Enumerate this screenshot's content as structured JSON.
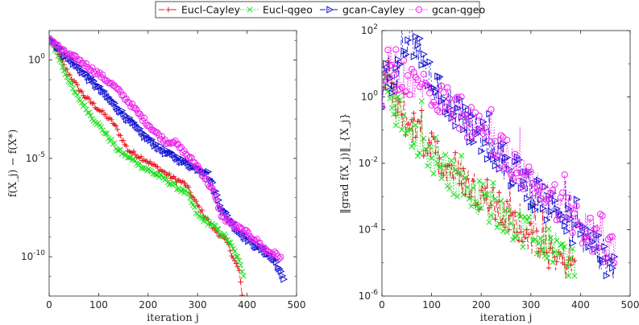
{
  "chart_data": [
    {
      "type": "line",
      "panel": "left",
      "ylabel": "f(X_j) − f(X*)",
      "xlabel": "iteration j",
      "yscale": "log",
      "xlim": [
        0,
        500
      ],
      "ylim_log10": [
        -12,
        1.5
      ],
      "xticks": [
        0,
        100,
        200,
        300,
        400,
        500
      ],
      "ytick_labels": [
        {
          "exp": 0,
          "base": "10",
          "sup": "0"
        },
        {
          "exp": -5,
          "base": "10",
          "sup": "-5"
        },
        {
          "exp": -10,
          "base": "10",
          "sup": "-10"
        }
      ],
      "series": [
        {
          "name": "Eucl-Cayley",
          "x": [
            0,
            10,
            30,
            50,
            70,
            100,
            130,
            160,
            190,
            220,
            250,
            275,
            280,
            300,
            330,
            360,
            385,
            390
          ],
          "log10y": [
            1.1,
            0.8,
            -0.3,
            -1.1,
            -1.8,
            -2.5,
            -3.2,
            -4.6,
            -5.0,
            -5.5,
            -6.0,
            -6.3,
            -6.5,
            -7.4,
            -8.5,
            -9.3,
            -10.8,
            -12.0
          ]
        },
        {
          "name": "Eucl-qgeo",
          "x": [
            0,
            10,
            30,
            50,
            70,
            90,
            110,
            140,
            170,
            200,
            230,
            260,
            280,
            300,
            330,
            360,
            380,
            393
          ],
          "log10y": [
            1.1,
            0.7,
            -0.5,
            -1.6,
            -2.3,
            -3.0,
            -3.6,
            -4.6,
            -5.1,
            -5.6,
            -6.0,
            -6.5,
            -6.8,
            -7.9,
            -8.4,
            -9.1,
            -10.0,
            -10.9
          ]
        },
        {
          "name": "gcan-Cayley",
          "x": [
            0,
            10,
            30,
            60,
            100,
            130,
            160,
            190,
            230,
            260,
            290,
            320,
            350,
            380,
            410,
            440,
            460,
            475
          ],
          "log10y": [
            1.1,
            0.9,
            0.3,
            -0.4,
            -1.4,
            -2.2,
            -3.0,
            -3.8,
            -4.6,
            -5.0,
            -5.4,
            -5.7,
            -7.6,
            -8.6,
            -9.3,
            -9.8,
            -10.3,
            -11.3
          ]
        },
        {
          "name": "gcan-qgeo",
          "x": [
            0,
            10,
            30,
            60,
            100,
            130,
            160,
            190,
            220,
            240,
            250,
            270,
            300,
            330,
            350,
            380,
            400,
            420,
            440,
            460,
            470
          ],
          "log10y": [
            1.1,
            0.9,
            0.4,
            0.0,
            -0.7,
            -1.3,
            -2.1,
            -3.0,
            -3.8,
            -4.2,
            -4.1,
            -4.6,
            -5.4,
            -6.6,
            -8.0,
            -8.5,
            -8.8,
            -9.2,
            -9.7,
            -9.9,
            -10.1
          ]
        }
      ]
    },
    {
      "type": "line",
      "panel": "right",
      "ylabel": "‖grad f(X_j)‖_{X_j}",
      "xlabel": "iteration j",
      "yscale": "log",
      "xlim": [
        0,
        500
      ],
      "ylim_log10": [
        -6,
        2
      ],
      "xticks": [
        0,
        100,
        200,
        300,
        400,
        500
      ],
      "ytick_labels": [
        {
          "exp": 2,
          "base": "10",
          "sup": "2"
        },
        {
          "exp": 0,
          "base": "10",
          "sup": "0"
        },
        {
          "exp": -2,
          "base": "10",
          "sup": "-2"
        },
        {
          "exp": -4,
          "base": "10",
          "sup": "-4"
        },
        {
          "exp": -6,
          "base": "10",
          "sup": "-6"
        }
      ],
      "series": [
        {
          "name": "Eucl-Cayley",
          "x": [
            0,
            5,
            10,
            30,
            60,
            100,
            150,
            200,
            250,
            300,
            340,
            370,
            390
          ],
          "log10y": [
            -0.3,
            0.5,
            0.3,
            -0.3,
            -0.9,
            -1.6,
            -2.3,
            -2.9,
            -3.6,
            -4.2,
            -4.7,
            -5.0,
            -5.1
          ]
        },
        {
          "name": "Eucl-qgeo",
          "x": [
            0,
            5,
            10,
            30,
            60,
            100,
            150,
            200,
            250,
            300,
            340,
            370,
            390
          ],
          "log10y": [
            -0.3,
            0.4,
            0.2,
            -0.4,
            -1.1,
            -1.8,
            -2.5,
            -3.1,
            -3.6,
            -4.2,
            -4.5,
            -4.9,
            -5.2
          ]
        },
        {
          "name": "gcan-Cayley",
          "x": [
            0,
            5,
            10,
            30,
            60,
            100,
            150,
            200,
            250,
            300,
            350,
            400,
            440,
            470
          ],
          "log10y": [
            -0.3,
            0.9,
            0.8,
            0.5,
            1.9,
            0.4,
            -0.4,
            -1.2,
            -2.0,
            -2.8,
            -3.4,
            -4.1,
            -4.7,
            -5.1
          ]
        },
        {
          "name": "gcan-qgeo",
          "x": [
            0,
            5,
            10,
            30,
            60,
            100,
            150,
            200,
            250,
            300,
            350,
            400,
            440,
            470
          ],
          "log10y": [
            -0.3,
            1.0,
            0.9,
            0.7,
            0.4,
            0.2,
            -0.5,
            -1.1,
            -1.8,
            -2.6,
            -3.2,
            -3.9,
            -4.4,
            -4.8
          ]
        }
      ]
    }
  ],
  "legend": {
    "placement": "top-center",
    "entries": [
      {
        "name": "Eucl-Cayley",
        "label": "Eucl-Cayley",
        "color": "#e8141e",
        "marker": "plus",
        "dash": "dashdot"
      },
      {
        "name": "Eucl-qgeo",
        "label": "Eucl-qgeo",
        "color": "#1adf1a",
        "marker": "x",
        "dash": "dotted"
      },
      {
        "name": "gcan-Cayley",
        "label": "gcan-Cayley",
        "color": "#1010d0",
        "marker": "triangle-right",
        "dash": "dashdot"
      },
      {
        "name": "gcan-qgeo",
        "label": "gcan-qgeo",
        "color": "#ee22ee",
        "marker": "circle",
        "dash": "dotted"
      }
    ]
  }
}
